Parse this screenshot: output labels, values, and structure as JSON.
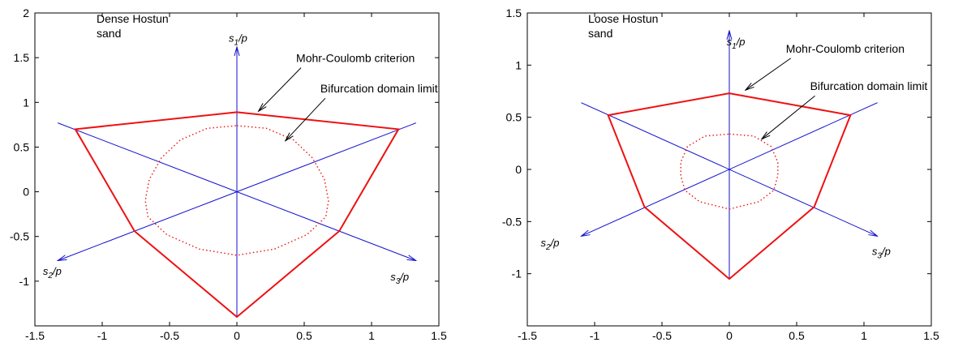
{
  "chart_data": [
    {
      "type": "line",
      "panel": "left",
      "title_lines": [
        "Dense Hostun",
        "sand"
      ],
      "xlim": [
        -1.5,
        1.5
      ],
      "ylim": [
        -1.5,
        2
      ],
      "xticks": [
        "-1.5",
        "-1",
        "-0.5",
        "0",
        "0.5",
        "1",
        "1.5"
      ],
      "yticks": [
        "-1",
        "-0.5",
        "0",
        "0.5",
        "1",
        "1.5",
        "2"
      ],
      "axes": [
        {
          "label": "s1/p",
          "from": [
            0,
            -1.4
          ],
          "to": [
            0,
            1.62
          ]
        },
        {
          "label": "s2/p",
          "from": [
            1.33,
            0.77
          ],
          "to": [
            -1.33,
            -0.77
          ]
        },
        {
          "label": "s3/p",
          "from": [
            -1.33,
            0.77
          ],
          "to": [
            1.33,
            -0.77
          ]
        }
      ],
      "axis_label_s1": "s1/p",
      "axis_label_s2": "s2/p",
      "axis_label_s3": "s3/p",
      "series": [
        {
          "name": "Mohr-Coulomb criterion",
          "style": "solid",
          "color": "#ee1111",
          "points": [
            [
              0,
              0.89
            ],
            [
              1.2,
              0.7
            ],
            [
              0.76,
              -0.44
            ],
            [
              0,
              -1.4
            ],
            [
              -0.76,
              -0.44
            ],
            [
              -1.2,
              0.7
            ],
            [
              0,
              0.89
            ]
          ]
        },
        {
          "name": "Bifurcation domain limit",
          "style": "dotted",
          "color": "#ee1111",
          "points": [
            [
              0,
              0.74
            ],
            [
              0.22,
              0.71
            ],
            [
              0.42,
              0.58
            ],
            [
              0.56,
              0.38
            ],
            [
              0.65,
              0.14
            ],
            [
              0.68,
              -0.1
            ],
            [
              0.66,
              -0.28
            ],
            [
              0.52,
              -0.48
            ],
            [
              0.28,
              -0.64
            ],
            [
              0,
              -0.71
            ],
            [
              -0.28,
              -0.64
            ],
            [
              -0.52,
              -0.48
            ],
            [
              -0.66,
              -0.28
            ],
            [
              -0.68,
              -0.1
            ],
            [
              -0.65,
              0.14
            ],
            [
              -0.56,
              0.38
            ],
            [
              -0.42,
              0.58
            ],
            [
              -0.22,
              0.71
            ],
            [
              0,
              0.74
            ]
          ]
        }
      ],
      "annotations": [
        {
          "text": "Mohr-Coulomb criterion",
          "at": [
            0.44,
            1.45
          ],
          "arrow_to": [
            0.16,
            0.9
          ]
        },
        {
          "text": "Bifurcation domain limit",
          "at": [
            0.62,
            1.11
          ],
          "arrow_to": [
            0.36,
            0.57
          ]
        }
      ]
    },
    {
      "type": "line",
      "panel": "right",
      "title_lines": [
        "Loose Hostun",
        "sand"
      ],
      "xlim": [
        -1.5,
        1.5
      ],
      "ylim": [
        -1.5,
        1.5
      ],
      "xticks": [
        "-1.5",
        "-1",
        "-0.5",
        "0",
        "0.5",
        "1",
        "1.5"
      ],
      "yticks": [
        "-1",
        "-0.5",
        "0",
        "0.5",
        "1",
        "1.5"
      ],
      "axes": [
        {
          "label": "s1/p",
          "from": [
            0,
            -1.05
          ],
          "to": [
            0,
            1.33
          ]
        },
        {
          "label": "s2/p",
          "from": [
            1.1,
            0.64
          ],
          "to": [
            -1.1,
            -0.64
          ]
        },
        {
          "label": "s3/p",
          "from": [
            -1.1,
            0.64
          ],
          "to": [
            1.1,
            -0.64
          ]
        }
      ],
      "axis_label_s1": "s1/p",
      "axis_label_s2": "s2/p",
      "axis_label_s3": "s3/p",
      "series": [
        {
          "name": "Mohr-Coulomb criterion",
          "style": "solid",
          "color": "#ee1111",
          "points": [
            [
              0,
              0.73
            ],
            [
              0.9,
              0.52
            ],
            [
              0.63,
              -0.36
            ],
            [
              0,
              -1.05
            ],
            [
              -0.63,
              -0.36
            ],
            [
              -0.9,
              0.52
            ],
            [
              0,
              0.73
            ]
          ]
        },
        {
          "name": "Bifurcation domain limit",
          "style": "dotted",
          "color": "#ee1111",
          "points": [
            [
              0,
              0.34
            ],
            [
              0.18,
              0.32
            ],
            [
              0.31,
              0.22
            ],
            [
              0.36,
              0.07
            ],
            [
              0.36,
              -0.06
            ],
            [
              0.33,
              -0.2
            ],
            [
              0.22,
              -0.31
            ],
            [
              0,
              -0.38
            ],
            [
              -0.22,
              -0.31
            ],
            [
              -0.33,
              -0.2
            ],
            [
              -0.36,
              -0.06
            ],
            [
              -0.36,
              0.07
            ],
            [
              -0.31,
              0.22
            ],
            [
              -0.18,
              0.32
            ],
            [
              0,
              0.34
            ]
          ]
        }
      ],
      "annotations": [
        {
          "text": "Mohr-Coulomb criterion",
          "at": [
            0.42,
            1.12
          ],
          "arrow_to": [
            0.12,
            0.76
          ]
        },
        {
          "text": "Bifurcation domain limit",
          "at": [
            0.6,
            0.76
          ],
          "arrow_to": [
            0.24,
            0.29
          ]
        }
      ]
    }
  ]
}
